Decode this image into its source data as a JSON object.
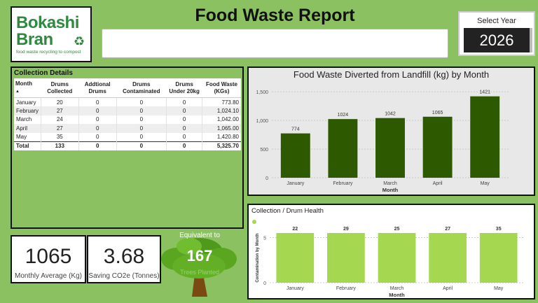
{
  "logo": {
    "line1": "Bokashi",
    "line2": "Bran",
    "tagline": "food waste recycling to compost"
  },
  "header": {
    "title": "Food Waste Report"
  },
  "year_slicer": {
    "label": "Select Year",
    "value": "2026"
  },
  "details": {
    "title": "Collection Details",
    "columns": [
      "Month",
      "Drums Collected",
      "Addtional Drums",
      "Drums Contaminated",
      "Drums Under 20kg",
      "Food Waste (KGs)"
    ],
    "rows": [
      [
        "January",
        "20",
        "0",
        "0",
        "0",
        "773.80"
      ],
      [
        "February",
        "27",
        "0",
        "0",
        "0",
        "1,024.10"
      ],
      [
        "March",
        "24",
        "0",
        "0",
        "0",
        "1,042.00"
      ],
      [
        "April",
        "27",
        "0",
        "0",
        "0",
        "1,065.00"
      ],
      [
        "May",
        "35",
        "0",
        "0",
        "0",
        "1,420.80"
      ]
    ],
    "total": [
      "Total",
      "133",
      "0",
      "0",
      "0",
      "5,325.70"
    ]
  },
  "stats": {
    "monthly_average": "1065",
    "monthly_average_label": "Monthly Average (Kg)",
    "saving": "3.68",
    "saving_label": "Saving CO2e (Tonnes)",
    "equivalent_label": "Equivalent to",
    "trees": "167",
    "trees_label": "Trees Planted"
  },
  "colors": {
    "background": "#8cc162",
    "bar_dark": "#2d5a00",
    "bar_light": "#a5d850"
  },
  "chart_data": [
    {
      "type": "bar",
      "title": "Food Waste Diverted from Landfill (kg) by Month",
      "xlabel": "Month",
      "ylabel": "",
      "categories": [
        "January",
        "February",
        "March",
        "April",
        "May"
      ],
      "values": [
        774,
        1024,
        1042,
        1065,
        1421
      ],
      "data_labels": [
        "774",
        "1024",
        "1042",
        "1065",
        "1421"
      ],
      "ylim": [
        0,
        1600
      ],
      "yticks": [
        0,
        500,
        1000,
        1500
      ],
      "ytick_labels": [
        "0",
        "500",
        "1,000",
        "1,500"
      ],
      "grid": true
    },
    {
      "type": "bar",
      "title": "Collection / Drum Health",
      "xlabel": "Month",
      "ylabel": "Contamination by Month",
      "categories": [
        "January",
        "February",
        "March",
        "April",
        "May"
      ],
      "values": [
        22,
        29,
        25,
        27,
        35
      ],
      "data_labels": [
        "22",
        "29",
        "25",
        "27",
        "35"
      ],
      "ylim": [
        0,
        5.5
      ],
      "yticks": [
        0,
        5
      ],
      "ytick_labels": [
        "0",
        "5"
      ],
      "grid": true
    }
  ]
}
